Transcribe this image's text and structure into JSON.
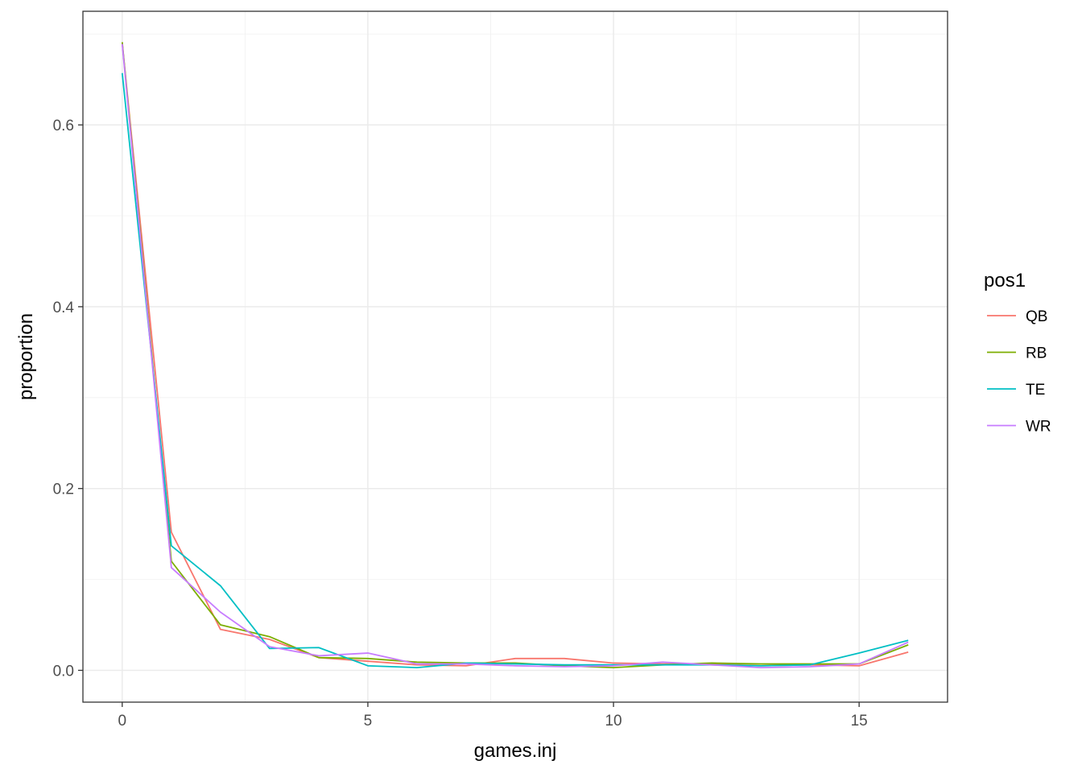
{
  "chart_data": {
    "type": "line",
    "xlabel": "games.inj",
    "ylabel": "proportion",
    "xlim": [
      -0.8,
      16.8
    ],
    "ylim": [
      -0.035,
      0.725
    ],
    "x_ticks": [
      0,
      5,
      10,
      15
    ],
    "x_tick_labels": [
      "0",
      "5",
      "10",
      "15"
    ],
    "y_ticks": [
      0.0,
      0.2,
      0.4,
      0.6
    ],
    "y_tick_labels": [
      "0.0",
      "0.2",
      "0.4",
      "0.6"
    ],
    "grid": true,
    "legend": {
      "title": "pos1",
      "placement": "right"
    },
    "x": [
      0,
      1,
      2,
      3,
      4,
      5,
      6,
      7,
      8,
      9,
      10,
      11,
      12,
      13,
      14,
      15,
      16
    ],
    "series": [
      {
        "name": "QB",
        "color": "#F8766D",
        "values": [
          0.69,
          0.152,
          0.045,
          0.034,
          0.014,
          0.01,
          0.006,
          0.005,
          0.013,
          0.013,
          0.008,
          0.007,
          0.007,
          0.005,
          0.006,
          0.005,
          0.02
        ]
      },
      {
        "name": "RB",
        "color": "#7CAE00",
        "values": [
          0.691,
          0.12,
          0.05,
          0.037,
          0.014,
          0.013,
          0.009,
          0.008,
          0.008,
          0.005,
          0.003,
          0.006,
          0.008,
          0.007,
          0.007,
          0.007,
          0.028
        ]
      },
      {
        "name": "TE",
        "color": "#00BFC4",
        "values": [
          0.657,
          0.137,
          0.093,
          0.024,
          0.025,
          0.005,
          0.003,
          0.008,
          0.007,
          0.006,
          0.006,
          0.006,
          0.006,
          0.005,
          0.006,
          0.019,
          0.033
        ]
      },
      {
        "name": "WR",
        "color": "#C77CFF",
        "values": [
          0.689,
          0.113,
          0.064,
          0.026,
          0.016,
          0.019,
          0.007,
          0.007,
          0.005,
          0.004,
          0.005,
          0.009,
          0.006,
          0.003,
          0.004,
          0.007,
          0.031
        ]
      }
    ]
  }
}
